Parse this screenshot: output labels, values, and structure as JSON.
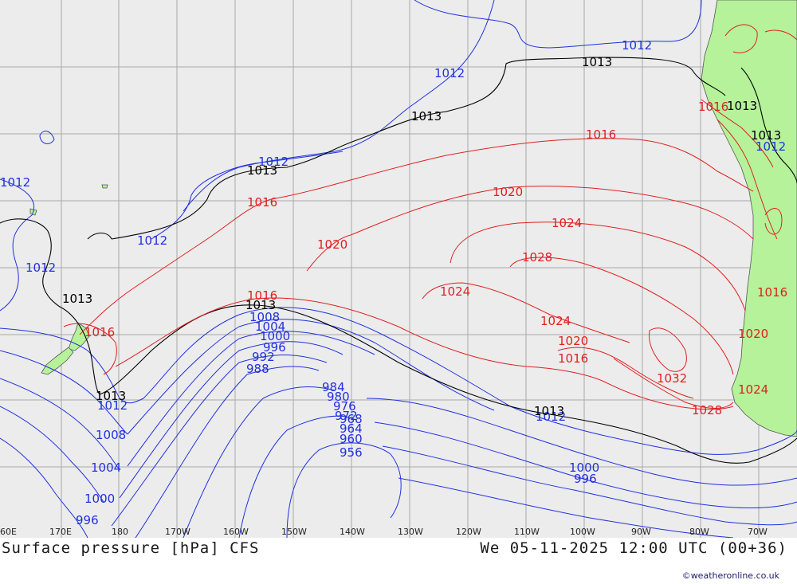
{
  "title": "Surface pressure [hPa] CFS",
  "datetime": "We 05-11-2025 12:00 UTC (00+36)",
  "credit": "©weatheronline.co.uk",
  "colors": {
    "ocean": "#ececec",
    "land": "#b5f29a",
    "grid": "#a9a9a9",
    "low": "#2030e0",
    "standard": "#000000",
    "high": "#e02020"
  },
  "lon_labels": [
    "60E",
    "170E",
    "180",
    "170W",
    "160W",
    "150W",
    "140W",
    "130W",
    "120W",
    "110W",
    "100W",
    "90W",
    "80W",
    "70W"
  ],
  "isobar_labels": {
    "blue": [
      "1012",
      "1012",
      "1012",
      "1012",
      "1012",
      "1012",
      "1012",
      "1012",
      "1008",
      "1004",
      "1000",
      "996",
      "1008",
      "1004",
      "1000",
      "996",
      "992",
      "988",
      "984",
      "980",
      "976",
      "972",
      "968",
      "964",
      "960",
      "956",
      "1012",
      "1000",
      "996"
    ],
    "black": [
      "1013",
      "1013",
      "1013",
      "1013",
      "1013",
      "1013",
      "1013",
      "1013",
      "1013"
    ],
    "red": [
      "1016",
      "1016",
      "1016",
      "1016",
      "1020",
      "1020",
      "1024",
      "1028",
      "1024",
      "1024",
      "1020",
      "1016",
      "1032",
      "1028",
      "1024",
      "1020",
      "1016",
      "1016"
    ]
  }
}
